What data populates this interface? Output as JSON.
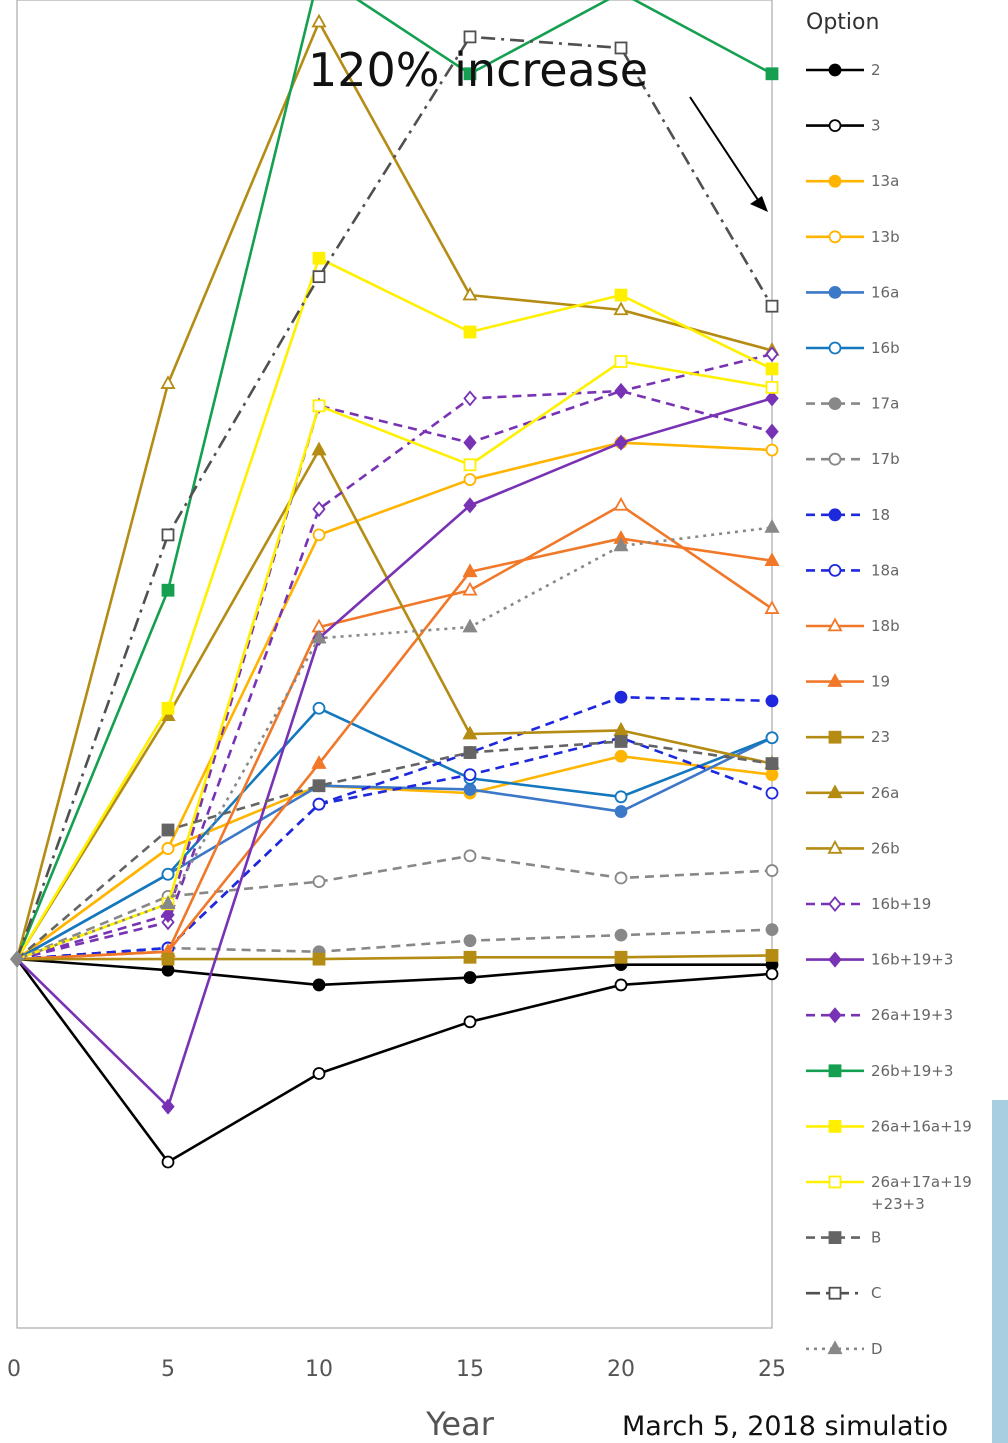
{
  "chart_data": {
    "type": "line",
    "title": "",
    "xlabel": "Year",
    "ylabel": "",
    "x": [
      0,
      5,
      10,
      15,
      20,
      25
    ],
    "xticks": [
      "0",
      "5",
      "10",
      "15",
      "20",
      "25"
    ],
    "xlim": [
      0,
      25
    ],
    "ylim": [
      -1.0,
      2.6
    ],
    "grid": false,
    "legend": {
      "title": "Option",
      "placement": "right"
    },
    "annotation": "120% increase",
    "footer": "March 5, 2018 simulatio",
    "series": [
      {
        "name": "2",
        "color": "#000000",
        "dash": "solid",
        "marker": "circle",
        "fill": true,
        "values": [
          0,
          -0.03,
          -0.07,
          -0.05,
          -0.015,
          -0.015
        ]
      },
      {
        "name": "3",
        "color": "#000000",
        "dash": "solid",
        "marker": "circle",
        "fill": false,
        "values": [
          0,
          -0.55,
          -0.31,
          -0.17,
          -0.07,
          -0.04
        ]
      },
      {
        "name": "13a",
        "color": "#FFB400",
        "dash": "solid",
        "marker": "circle",
        "fill": true,
        "values": [
          0,
          0.3,
          0.47,
          0.45,
          0.55,
          0.5
        ]
      },
      {
        "name": "13b",
        "color": "#FFB400",
        "dash": "solid",
        "marker": "circle",
        "fill": false,
        "values": [
          0,
          0.3,
          1.15,
          1.3,
          1.4,
          1.38
        ]
      },
      {
        "name": "16a",
        "color": "#3C78C8",
        "dash": "solid",
        "marker": "circle",
        "fill": true,
        "values": [
          0,
          0.23,
          0.47,
          0.46,
          0.4,
          0.6
        ]
      },
      {
        "name": "16b",
        "color": "#1478BE",
        "dash": "solid",
        "marker": "circle",
        "fill": false,
        "values": [
          0,
          0.23,
          0.68,
          0.49,
          0.44,
          0.6
        ]
      },
      {
        "name": "17a",
        "color": "#888888",
        "dash": "dash",
        "marker": "circle",
        "fill": true,
        "values": [
          0,
          0.03,
          0.02,
          0.05,
          0.065,
          0.08
        ]
      },
      {
        "name": "17b",
        "color": "#888888",
        "dash": "dash",
        "marker": "circle",
        "fill": false,
        "values": [
          0,
          0.17,
          0.21,
          0.28,
          0.22,
          0.24
        ]
      },
      {
        "name": "18",
        "color": "#1E28DC",
        "dash": "dash",
        "marker": "circle",
        "fill": true,
        "values": [
          0,
          0.03,
          0.42,
          0.56,
          0.71,
          0.7
        ]
      },
      {
        "name": "18a",
        "color": "#1E28DC",
        "dash": "dash",
        "marker": "circle",
        "fill": false,
        "values": [
          0,
          0.03,
          0.42,
          0.5,
          0.6,
          0.45
        ]
      },
      {
        "name": "18b",
        "color": "#F07828",
        "dash": "solid",
        "marker": "triangle",
        "fill": false,
        "values": [
          0,
          0.02,
          0.9,
          1.0,
          1.23,
          0.95
        ]
      },
      {
        "name": "19",
        "color": "#F07828",
        "dash": "solid",
        "marker": "triangle",
        "fill": true,
        "values": [
          0,
          0.02,
          0.53,
          1.05,
          1.14,
          1.08
        ]
      },
      {
        "name": "23",
        "color": "#B48C14",
        "dash": "solid",
        "marker": "square",
        "fill": true,
        "values": [
          0,
          0.0,
          0.0,
          0.005,
          0.005,
          0.01
        ]
      },
      {
        "name": "26a",
        "color": "#B48C14",
        "dash": "solid",
        "marker": "triangle",
        "fill": true,
        "values": [
          0,
          0.66,
          1.38,
          0.61,
          0.62,
          0.53
        ]
      },
      {
        "name": "26b",
        "color": "#B48C14",
        "dash": "solid",
        "marker": "triangle",
        "fill": false,
        "values": [
          0,
          1.56,
          2.54,
          1.8,
          1.76,
          1.65
        ]
      },
      {
        "name": "16b+19",
        "color": "#7832B4",
        "dash": "dash",
        "marker": "diamond",
        "fill": false,
        "values": [
          0,
          0.1,
          1.22,
          1.52,
          1.54,
          1.64
        ]
      },
      {
        "name": "16b+19+3",
        "color": "#7832B4",
        "dash": "solid",
        "marker": "diamond",
        "fill": true,
        "values": [
          0,
          -0.4,
          0.87,
          1.23,
          1.4,
          1.52
        ]
      },
      {
        "name": "26a+19+3",
        "color": "#7832B4",
        "dash": "dash",
        "marker": "diamond",
        "fill": true,
        "values": [
          0,
          0.12,
          1.5,
          1.4,
          1.54,
          1.43
        ]
      },
      {
        "name": "26b+19+3",
        "color": "#14A050",
        "dash": "solid",
        "marker": "square",
        "fill": true,
        "values": [
          0,
          1.0,
          2.67,
          2.4,
          2.62,
          2.4
        ]
      },
      {
        "name": "26a+16a+19",
        "color": "#FFF000",
        "dash": "solid",
        "marker": "square",
        "fill": true,
        "values": [
          0,
          0.68,
          1.9,
          1.7,
          1.8,
          1.6
        ]
      },
      {
        "name": "26a+17a+19\n+23+3",
        "color": "#FFF000",
        "dash": "solid",
        "marker": "square",
        "fill": false,
        "values": [
          0,
          0.15,
          1.5,
          1.34,
          1.62,
          1.55
        ]
      },
      {
        "name": "B",
        "color": "#646464",
        "dash": "dash",
        "marker": "square",
        "fill": true,
        "values": [
          0,
          0.35,
          0.47,
          0.56,
          0.59,
          0.53
        ]
      },
      {
        "name": "C",
        "color": "#505050",
        "dash": "dashdot",
        "marker": "square",
        "fill": false,
        "values": [
          0,
          1.15,
          1.85,
          2.5,
          2.47,
          1.77
        ]
      },
      {
        "name": "D",
        "color": "#888888",
        "dash": "dot",
        "marker": "triangle",
        "fill": true,
        "values": [
          0,
          0.15,
          0.87,
          0.9,
          1.12,
          1.17
        ]
      }
    ]
  }
}
